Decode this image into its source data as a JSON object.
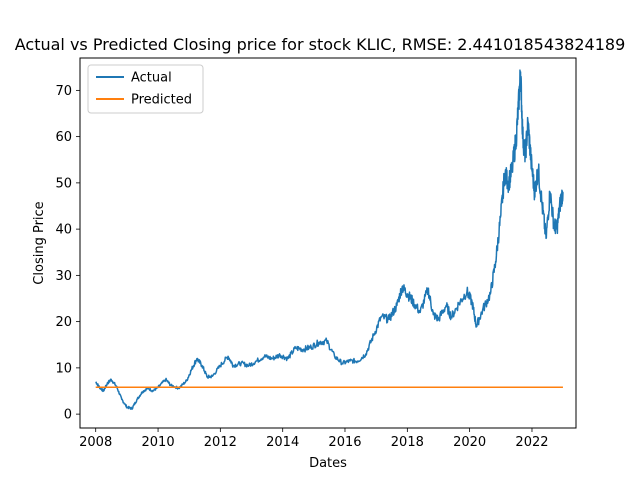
{
  "chart_data": {
    "type": "line",
    "title": "Actual vs Predicted Closing price for stock KLIC, RMSE: 2.441018543824189",
    "xlabel": "Dates",
    "ylabel": "Closing Price",
    "xlim": [
      "2007-07-01",
      "2023-06-01"
    ],
    "ylim": [
      -3,
      77
    ],
    "x_ticks": [
      "2008",
      "2010",
      "2012",
      "2014",
      "2016",
      "2018",
      "2020",
      "2022"
    ],
    "x_tick_dates": [
      "2008-01-01",
      "2010-01-01",
      "2012-01-01",
      "2014-01-01",
      "2016-01-01",
      "2018-01-01",
      "2020-01-01",
      "2022-01-01"
    ],
    "y_ticks": [
      0,
      10,
      20,
      30,
      40,
      50,
      60,
      70
    ],
    "grid": false,
    "legend_position": "top-left",
    "series": [
      {
        "name": "Actual",
        "color": "#1f77b4",
        "points": [
          [
            "2008-01-01",
            7.0
          ],
          [
            "2008-02-15",
            5.8
          ],
          [
            "2008-04-01",
            5.0
          ],
          [
            "2008-05-15",
            6.6
          ],
          [
            "2008-07-01",
            7.5
          ],
          [
            "2008-09-01",
            6.0
          ],
          [
            "2008-11-01",
            3.2
          ],
          [
            "2009-01-01",
            1.5
          ],
          [
            "2009-03-01",
            1.2
          ],
          [
            "2009-05-01",
            3.2
          ],
          [
            "2009-07-01",
            4.8
          ],
          [
            "2009-09-01",
            5.6
          ],
          [
            "2009-11-01",
            5.0
          ],
          [
            "2010-01-01",
            5.8
          ],
          [
            "2010-04-01",
            7.5
          ],
          [
            "2010-06-01",
            6.2
          ],
          [
            "2010-09-01",
            5.6
          ],
          [
            "2010-12-01",
            7.2
          ],
          [
            "2011-02-01",
            9.8
          ],
          [
            "2011-04-01",
            12.0
          ],
          [
            "2011-06-01",
            10.5
          ],
          [
            "2011-08-01",
            8.0
          ],
          [
            "2011-10-01",
            8.2
          ],
          [
            "2012-01-01",
            10.5
          ],
          [
            "2012-04-01",
            12.5
          ],
          [
            "2012-06-01",
            10.5
          ],
          [
            "2012-09-01",
            11.0
          ],
          [
            "2012-12-01",
            10.5
          ],
          [
            "2013-03-01",
            11.5
          ],
          [
            "2013-06-01",
            12.5
          ],
          [
            "2013-09-01",
            12.0
          ],
          [
            "2013-12-01",
            12.8
          ],
          [
            "2014-03-01",
            12.0
          ],
          [
            "2014-06-01",
            14.3
          ],
          [
            "2014-09-01",
            14.0
          ],
          [
            "2014-12-01",
            14.5
          ],
          [
            "2015-03-01",
            15.5
          ],
          [
            "2015-06-01",
            15.8
          ],
          [
            "2015-09-01",
            12.5
          ],
          [
            "2015-12-01",
            11.0
          ],
          [
            "2016-03-01",
            11.5
          ],
          [
            "2016-06-01",
            11.5
          ],
          [
            "2016-09-01",
            13.0
          ],
          [
            "2016-12-01",
            17.0
          ],
          [
            "2017-03-01",
            21.0
          ],
          [
            "2017-06-01",
            20.5
          ],
          [
            "2017-09-01",
            23.5
          ],
          [
            "2017-11-01",
            27.5
          ],
          [
            "2018-01-01",
            26.0
          ],
          [
            "2018-03-01",
            24.5
          ],
          [
            "2018-06-01",
            22.0
          ],
          [
            "2018-09-01",
            27.0
          ],
          [
            "2018-11-01",
            21.5
          ],
          [
            "2019-01-01",
            20.5
          ],
          [
            "2019-04-01",
            23.5
          ],
          [
            "2019-06-01",
            21.0
          ],
          [
            "2019-09-01",
            24.0
          ],
          [
            "2019-12-01",
            26.5
          ],
          [
            "2020-02-01",
            24.0
          ],
          [
            "2020-03-20",
            19.0
          ],
          [
            "2020-06-01",
            22.5
          ],
          [
            "2020-09-01",
            26.0
          ],
          [
            "2020-11-01",
            33.0
          ],
          [
            "2021-01-01",
            43.0
          ],
          [
            "2021-02-15",
            52.0
          ],
          [
            "2021-04-01",
            50.0
          ],
          [
            "2021-05-15",
            53.0
          ],
          [
            "2021-07-01",
            60.0
          ],
          [
            "2021-08-01",
            68.0
          ],
          [
            "2021-08-20",
            74.0
          ],
          [
            "2021-09-15",
            60.0
          ],
          [
            "2021-10-15",
            56.0
          ],
          [
            "2021-11-15",
            63.0
          ],
          [
            "2021-12-20",
            55.0
          ],
          [
            "2022-02-01",
            48.0
          ],
          [
            "2022-03-15",
            53.0
          ],
          [
            "2022-05-01",
            45.0
          ],
          [
            "2022-06-15",
            38.0
          ],
          [
            "2022-08-01",
            48.0
          ],
          [
            "2022-09-15",
            41.0
          ],
          [
            "2022-10-20",
            40.0
          ],
          [
            "2022-12-01",
            46.0
          ],
          [
            "2022-12-30",
            48.0
          ]
        ]
      },
      {
        "name": "Predicted",
        "color": "#ff7f0e",
        "points": [
          [
            "2008-01-01",
            5.8
          ],
          [
            "2022-12-30",
            5.8
          ]
        ]
      }
    ]
  }
}
